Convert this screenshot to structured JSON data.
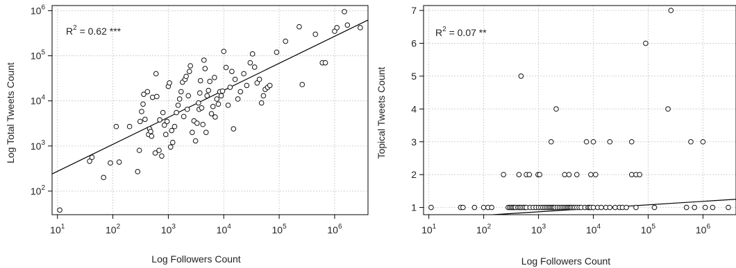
{
  "colors": {
    "points": "#111111",
    "grid": "#d0d0d0",
    "fit_line": "#000000"
  },
  "chart_data": [
    {
      "type": "scatter",
      "title": "",
      "xlabel": "Log Followers Count",
      "ylabel": "Log Total Tweets Count",
      "x_scale": "log10",
      "y_scale": "log10",
      "xlim": [
        8,
        4000000
      ],
      "ylim": [
        30,
        1300000
      ],
      "xticks": [
        10,
        100,
        1000,
        10000,
        100000,
        1000000
      ],
      "xtick_labels": [
        {
          "base": "10",
          "exp": "1"
        },
        {
          "base": "10",
          "exp": "2"
        },
        {
          "base": "10",
          "exp": "3"
        },
        {
          "base": "10",
          "exp": "4"
        },
        {
          "base": "10",
          "exp": "5"
        },
        {
          "base": "10",
          "exp": "6"
        }
      ],
      "yticks": [
        100,
        1000,
        10000,
        100000,
        1000000
      ],
      "ytick_labels": [
        {
          "base": "10",
          "exp": "2"
        },
        {
          "base": "10",
          "exp": "3"
        },
        {
          "base": "10",
          "exp": "4"
        },
        {
          "base": "10",
          "exp": "5"
        },
        {
          "base": "10",
          "exp": "6"
        }
      ],
      "grid": true,
      "annotation": {
        "prefix": "R",
        "sup": "2",
        "rest": " = 0.62 ***"
      },
      "fit_line": {
        "x": [
          8,
          4000000
        ],
        "y": [
          240,
          620000
        ]
      },
      "points": [
        {
          "x": 11,
          "y": 38
        },
        {
          "x": 38,
          "y": 460
        },
        {
          "x": 42,
          "y": 560
        },
        {
          "x": 68,
          "y": 200
        },
        {
          "x": 90,
          "y": 420
        },
        {
          "x": 115,
          "y": 2700
        },
        {
          "x": 130,
          "y": 440
        },
        {
          "x": 200,
          "y": 2700
        },
        {
          "x": 280,
          "y": 270
        },
        {
          "x": 300,
          "y": 800
        },
        {
          "x": 310,
          "y": 3500
        },
        {
          "x": 330,
          "y": 5800
        },
        {
          "x": 350,
          "y": 8500
        },
        {
          "x": 360,
          "y": 14000
        },
        {
          "x": 380,
          "y": 3900
        },
        {
          "x": 420,
          "y": 16000
        },
        {
          "x": 440,
          "y": 1800
        },
        {
          "x": 460,
          "y": 2400
        },
        {
          "x": 480,
          "y": 2100
        },
        {
          "x": 500,
          "y": 1650
        },
        {
          "x": 520,
          "y": 12000
        },
        {
          "x": 580,
          "y": 700
        },
        {
          "x": 600,
          "y": 40000
        },
        {
          "x": 620,
          "y": 12500
        },
        {
          "x": 680,
          "y": 800
        },
        {
          "x": 700,
          "y": 3800
        },
        {
          "x": 760,
          "y": 600
        },
        {
          "x": 800,
          "y": 5500
        },
        {
          "x": 850,
          "y": 2900
        },
        {
          "x": 900,
          "y": 1800
        },
        {
          "x": 950,
          "y": 3500
        },
        {
          "x": 1000,
          "y": 21000
        },
        {
          "x": 1050,
          "y": 25000
        },
        {
          "x": 1100,
          "y": 950
        },
        {
          "x": 1150,
          "y": 2200
        },
        {
          "x": 1200,
          "y": 1200
        },
        {
          "x": 1300,
          "y": 2700
        },
        {
          "x": 1400,
          "y": 5500
        },
        {
          "x": 1500,
          "y": 8000
        },
        {
          "x": 1600,
          "y": 11000
        },
        {
          "x": 1700,
          "y": 16000
        },
        {
          "x": 1800,
          "y": 26000
        },
        {
          "x": 1900,
          "y": 4500
        },
        {
          "x": 2000,
          "y": 30000
        },
        {
          "x": 2100,
          "y": 35000
        },
        {
          "x": 2200,
          "y": 6500
        },
        {
          "x": 2300,
          "y": 13000
        },
        {
          "x": 2400,
          "y": 45000
        },
        {
          "x": 2500,
          "y": 60000
        },
        {
          "x": 2700,
          "y": 2000
        },
        {
          "x": 2900,
          "y": 3600
        },
        {
          "x": 3100,
          "y": 1300
        },
        {
          "x": 3300,
          "y": 3200
        },
        {
          "x": 3500,
          "y": 9000
        },
        {
          "x": 3600,
          "y": 6500
        },
        {
          "x": 3700,
          "y": 15000
        },
        {
          "x": 3800,
          "y": 28000
        },
        {
          "x": 4000,
          "y": 7000
        },
        {
          "x": 4200,
          "y": 3000
        },
        {
          "x": 4400,
          "y": 80000
        },
        {
          "x": 4600,
          "y": 52000
        },
        {
          "x": 4800,
          "y": 2000
        },
        {
          "x": 5000,
          "y": 13000
        },
        {
          "x": 5300,
          "y": 17000
        },
        {
          "x": 5600,
          "y": 27000
        },
        {
          "x": 6000,
          "y": 5200
        },
        {
          "x": 6400,
          "y": 7500
        },
        {
          "x": 6800,
          "y": 33000
        },
        {
          "x": 7000,
          "y": 4400
        },
        {
          "x": 7500,
          "y": 11000
        },
        {
          "x": 8000,
          "y": 8500
        },
        {
          "x": 8500,
          "y": 16000
        },
        {
          "x": 9000,
          "y": 13000
        },
        {
          "x": 9500,
          "y": 16500
        },
        {
          "x": 10000,
          "y": 125000
        },
        {
          "x": 11000,
          "y": 55000
        },
        {
          "x": 12000,
          "y": 8000
        },
        {
          "x": 13000,
          "y": 20000
        },
        {
          "x": 14000,
          "y": 45000
        },
        {
          "x": 15000,
          "y": 2400
        },
        {
          "x": 16000,
          "y": 30000
        },
        {
          "x": 18000,
          "y": 11000
        },
        {
          "x": 20000,
          "y": 16000
        },
        {
          "x": 23000,
          "y": 40000
        },
        {
          "x": 26000,
          "y": 22000
        },
        {
          "x": 30000,
          "y": 70000
        },
        {
          "x": 33000,
          "y": 110000
        },
        {
          "x": 36000,
          "y": 56000
        },
        {
          "x": 40000,
          "y": 25000
        },
        {
          "x": 44000,
          "y": 30000
        },
        {
          "x": 48000,
          "y": 9000
        },
        {
          "x": 52000,
          "y": 13000
        },
        {
          "x": 56000,
          "y": 18000
        },
        {
          "x": 62000,
          "y": 20000
        },
        {
          "x": 68000,
          "y": 22000
        },
        {
          "x": 90000,
          "y": 120000
        },
        {
          "x": 130000,
          "y": 210000
        },
        {
          "x": 230000,
          "y": 440000
        },
        {
          "x": 260000,
          "y": 23000
        },
        {
          "x": 450000,
          "y": 300000
        },
        {
          "x": 600000,
          "y": 70000
        },
        {
          "x": 680000,
          "y": 70000
        },
        {
          "x": 1000000,
          "y": 350000
        },
        {
          "x": 1100000,
          "y": 420000
        },
        {
          "x": 1500000,
          "y": 950000
        },
        {
          "x": 1700000,
          "y": 480000
        },
        {
          "x": 2900000,
          "y": 420000
        }
      ]
    },
    {
      "type": "scatter",
      "title": "",
      "xlabel": "Log Followers Count",
      "ylabel": "Topical Tweets Count",
      "x_scale": "log10",
      "y_scale": "linear",
      "xlim": [
        8,
        4000000
      ],
      "ylim": [
        0.78,
        7.15
      ],
      "xticks": [
        10,
        100,
        1000,
        10000,
        100000,
        1000000
      ],
      "xtick_labels": [
        {
          "base": "10",
          "exp": "1"
        },
        {
          "base": "10",
          "exp": "2"
        },
        {
          "base": "10",
          "exp": "3"
        },
        {
          "base": "10",
          "exp": "4"
        },
        {
          "base": "10",
          "exp": "5"
        },
        {
          "base": "10",
          "exp": "6"
        }
      ],
      "yticks": [
        1,
        2,
        3,
        4,
        5,
        6,
        7
      ],
      "ytick_labels": [
        "1",
        "2",
        "3",
        "4",
        "5",
        "6",
        "7"
      ],
      "grid": true,
      "annotation": {
        "prefix": "R",
        "sup": "2",
        "rest": " = 0.07 **"
      },
      "fit_line": {
        "x": [
          150,
          4000000
        ],
        "y": [
          0.78,
          1.25
        ]
      },
      "points": [
        {
          "x": 11,
          "y": 1
        },
        {
          "x": 38,
          "y": 1
        },
        {
          "x": 42,
          "y": 1
        },
        {
          "x": 68,
          "y": 1
        },
        {
          "x": 100,
          "y": 1
        },
        {
          "x": 120,
          "y": 1
        },
        {
          "x": 140,
          "y": 1
        },
        {
          "x": 280,
          "y": 1
        },
        {
          "x": 300,
          "y": 1
        },
        {
          "x": 320,
          "y": 1
        },
        {
          "x": 340,
          "y": 1
        },
        {
          "x": 360,
          "y": 1
        },
        {
          "x": 380,
          "y": 1
        },
        {
          "x": 420,
          "y": 1
        },
        {
          "x": 450,
          "y": 1
        },
        {
          "x": 480,
          "y": 1
        },
        {
          "x": 520,
          "y": 1
        },
        {
          "x": 560,
          "y": 1
        },
        {
          "x": 600,
          "y": 1
        },
        {
          "x": 700,
          "y": 1
        },
        {
          "x": 800,
          "y": 1
        },
        {
          "x": 900,
          "y": 1
        },
        {
          "x": 1000,
          "y": 1
        },
        {
          "x": 1100,
          "y": 1
        },
        {
          "x": 1200,
          "y": 1
        },
        {
          "x": 1300,
          "y": 1
        },
        {
          "x": 1400,
          "y": 1
        },
        {
          "x": 1500,
          "y": 1
        },
        {
          "x": 1600,
          "y": 1
        },
        {
          "x": 1700,
          "y": 1
        },
        {
          "x": 1800,
          "y": 1
        },
        {
          "x": 1900,
          "y": 1
        },
        {
          "x": 2000,
          "y": 1
        },
        {
          "x": 2200,
          "y": 1
        },
        {
          "x": 2400,
          "y": 1
        },
        {
          "x": 2600,
          "y": 1
        },
        {
          "x": 2800,
          "y": 1
        },
        {
          "x": 3000,
          "y": 1
        },
        {
          "x": 3200,
          "y": 1
        },
        {
          "x": 3400,
          "y": 1
        },
        {
          "x": 3600,
          "y": 1
        },
        {
          "x": 3800,
          "y": 1
        },
        {
          "x": 4000,
          "y": 1
        },
        {
          "x": 4300,
          "y": 1
        },
        {
          "x": 4600,
          "y": 1
        },
        {
          "x": 5000,
          "y": 1
        },
        {
          "x": 5500,
          "y": 1
        },
        {
          "x": 6000,
          "y": 1
        },
        {
          "x": 7000,
          "y": 1
        },
        {
          "x": 8000,
          "y": 1
        },
        {
          "x": 8500,
          "y": 1
        },
        {
          "x": 9000,
          "y": 1
        },
        {
          "x": 10000,
          "y": 1
        },
        {
          "x": 12000,
          "y": 1
        },
        {
          "x": 14000,
          "y": 1
        },
        {
          "x": 17000,
          "y": 1
        },
        {
          "x": 20000,
          "y": 1
        },
        {
          "x": 25000,
          "y": 1
        },
        {
          "x": 30000,
          "y": 1
        },
        {
          "x": 34000,
          "y": 1
        },
        {
          "x": 40000,
          "y": 1
        },
        {
          "x": 60000,
          "y": 1
        },
        {
          "x": 130000,
          "y": 1
        },
        {
          "x": 500000,
          "y": 1
        },
        {
          "x": 700000,
          "y": 1
        },
        {
          "x": 1100000,
          "y": 1
        },
        {
          "x": 1500000,
          "y": 1
        },
        {
          "x": 2900000,
          "y": 1
        },
        {
          "x": 230,
          "y": 2
        },
        {
          "x": 440,
          "y": 2
        },
        {
          "x": 600,
          "y": 2
        },
        {
          "x": 680,
          "y": 2
        },
        {
          "x": 980,
          "y": 2
        },
        {
          "x": 1050,
          "y": 2
        },
        {
          "x": 3000,
          "y": 2
        },
        {
          "x": 3600,
          "y": 2
        },
        {
          "x": 5000,
          "y": 2
        },
        {
          "x": 9000,
          "y": 2
        },
        {
          "x": 11000,
          "y": 2
        },
        {
          "x": 50000,
          "y": 2
        },
        {
          "x": 60000,
          "y": 2
        },
        {
          "x": 70000,
          "y": 2
        },
        {
          "x": 1700,
          "y": 3
        },
        {
          "x": 7500,
          "y": 3
        },
        {
          "x": 10000,
          "y": 3
        },
        {
          "x": 20000,
          "y": 3
        },
        {
          "x": 50000,
          "y": 3
        },
        {
          "x": 600000,
          "y": 3
        },
        {
          "x": 1000000,
          "y": 3
        },
        {
          "x": 2100,
          "y": 4
        },
        {
          "x": 230000,
          "y": 4
        },
        {
          "x": 480,
          "y": 5
        },
        {
          "x": 90000,
          "y": 6
        },
        {
          "x": 260000,
          "y": 7
        }
      ]
    }
  ]
}
